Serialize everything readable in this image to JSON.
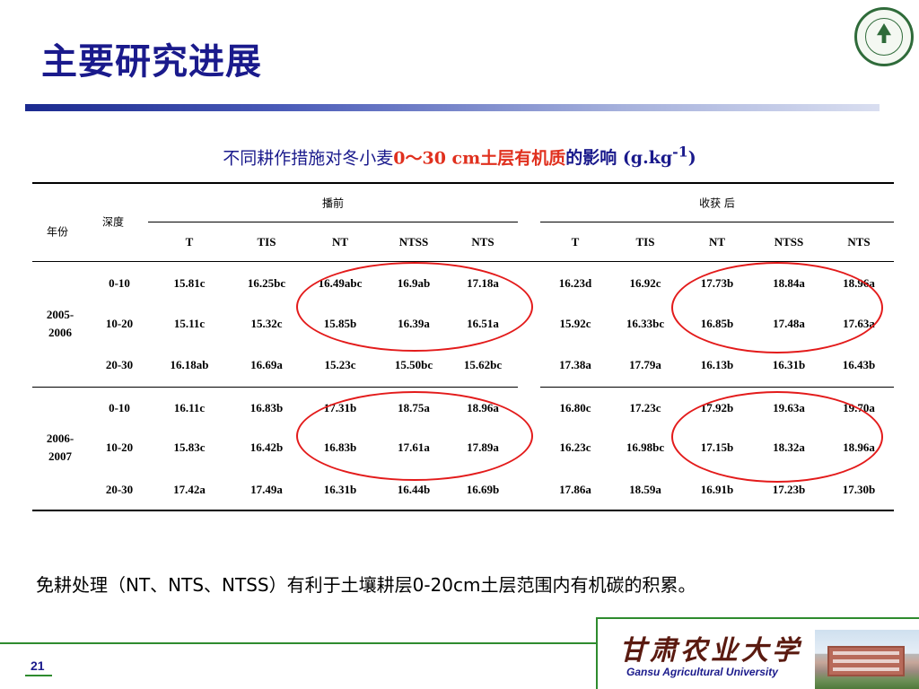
{
  "slide": {
    "title": "主要研究进展",
    "page_number": "21",
    "footer_cn": "甘肃农业大学",
    "footer_en": "Gansu Agricultural University",
    "accent_color": "#1a1a8c",
    "highlight_color": "#e31b1b"
  },
  "caption": {
    "part1": "不同耕作措施对冬小麦",
    "part2": "0～30 cm土层有机质",
    "part3": "的影响 (g.kg",
    "sup": "-1",
    "part4": ")"
  },
  "table": {
    "year_header": "年份",
    "depth_header": "深度",
    "group_before": "播前",
    "group_after": "收获 后",
    "treatments": [
      "T",
      "TIS",
      "NT",
      "NTSS",
      "NTS"
    ],
    "years": [
      {
        "label": "2005-2006",
        "rows": [
          {
            "depth": "0-10",
            "before": [
              "15.81c",
              "16.25bc",
              "16.49abc",
              "16.9ab",
              "17.18a"
            ],
            "after": [
              "16.23d",
              "16.92c",
              "17.73b",
              "18.84a",
              "18.96a"
            ]
          },
          {
            "depth": "10-20",
            "before": [
              "15.11c",
              "15.32c",
              "15.85b",
              "16.39a",
              "16.51a"
            ],
            "after": [
              "15.92c",
              "16.33bc",
              "16.85b",
              "17.48a",
              "17.63a"
            ]
          },
          {
            "depth": "20-30",
            "before": [
              "16.18ab",
              "16.69a",
              "15.23c",
              "15.50bc",
              "15.62bc"
            ],
            "after": [
              "17.38a",
              "17.79a",
              "16.13b",
              "16.31b",
              "16.43b"
            ]
          }
        ]
      },
      {
        "label": "2006-2007",
        "rows": [
          {
            "depth": "0-10",
            "before": [
              "16.11c",
              "16.83b",
              "17.31b",
              "18.75a",
              "18.96a"
            ],
            "after": [
              "16.80c",
              "17.23c",
              "17.92b",
              "19.63a",
              "19.70a"
            ]
          },
          {
            "depth": "10-20",
            "before": [
              "15.83c",
              "16.42b",
              "16.83b",
              "17.61a",
              "17.89a"
            ],
            "after": [
              "16.23c",
              "16.98bc",
              "17.15b",
              "18.32a",
              "18.96a"
            ]
          },
          {
            "depth": "20-30",
            "before": [
              "17.42a",
              "17.49a",
              "16.31b",
              "16.44b",
              "16.69b"
            ],
            "after": [
              "17.86a",
              "18.59a",
              "16.91b",
              "17.23b",
              "17.30b"
            ]
          }
        ]
      }
    ]
  },
  "note": "免耕处理（NT、NTS、NTSS）有利于土壤耕层0-20cm土层范围内有机碳的积累。"
}
